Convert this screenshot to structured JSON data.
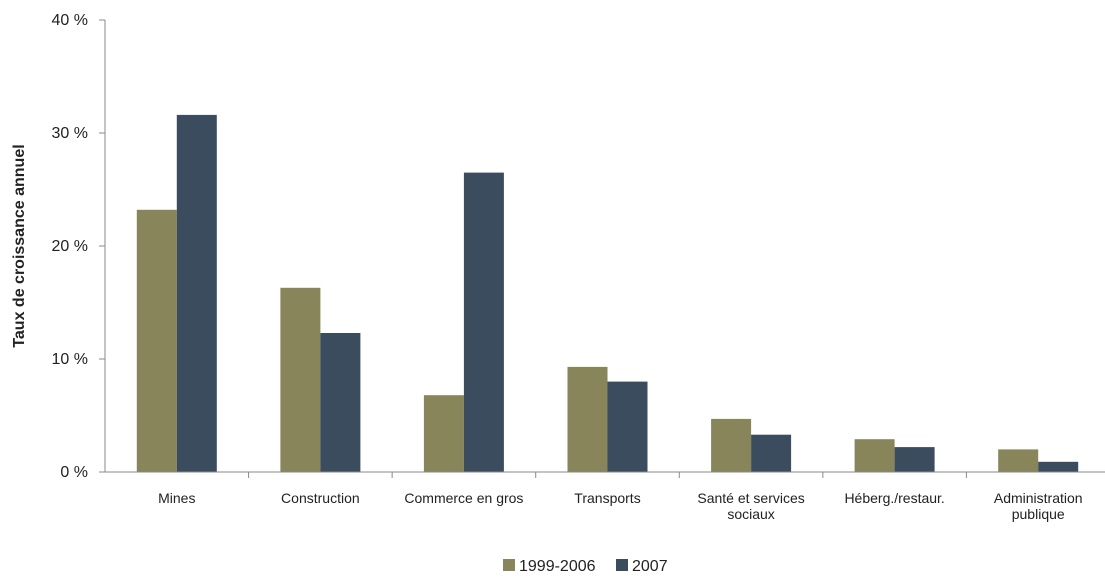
{
  "chart_data": {
    "type": "bar",
    "ylabel": "Taux de croissance  annuel",
    "ylim": [
      0,
      40
    ],
    "yticks": [
      {
        "value": 0,
        "label": "0 %"
      },
      {
        "value": 10,
        "label": "10 %"
      },
      {
        "value": 20,
        "label": "20 %"
      },
      {
        "value": 30,
        "label": "30 %"
      },
      {
        "value": 40,
        "label": "40 %"
      }
    ],
    "categories": [
      [
        "Mines"
      ],
      [
        "Construction"
      ],
      [
        "Commerce en gros"
      ],
      [
        "Transports"
      ],
      [
        "Santé et services",
        "sociaux"
      ],
      [
        "Héberg./restaur."
      ],
      [
        "Administration",
        "publique"
      ]
    ],
    "series": [
      {
        "name": "1999-2006",
        "color": "#878559",
        "values": [
          23.2,
          16.3,
          6.8,
          9.3,
          4.7,
          2.9,
          2.0
        ]
      },
      {
        "name": "2007",
        "color": "#3a4c5e",
        "values": [
          31.6,
          12.3,
          26.5,
          8.0,
          3.3,
          2.2,
          0.9
        ]
      }
    ],
    "grid": false,
    "legend": "bottom-center"
  }
}
